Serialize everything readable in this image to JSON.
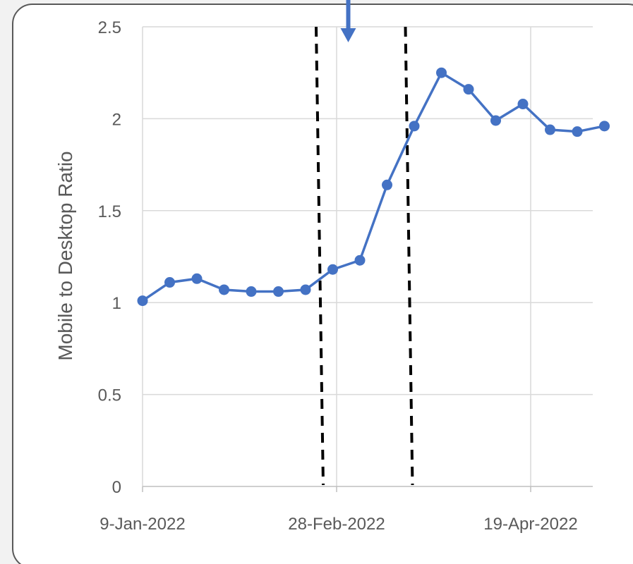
{
  "chart_data": {
    "type": "line",
    "title": "",
    "xlabel": "",
    "ylabel": "Mobile to Desktop Ratio",
    "ylim": [
      0,
      2.5
    ],
    "xlim": [
      "2022-01-09",
      "2022-05-05"
    ],
    "y_ticks": [
      "0",
      "0.5",
      "1",
      "1.5",
      "2",
      "2.5"
    ],
    "x_ticks": [
      {
        "date": "2022-01-09",
        "label": "9-Jan-2022"
      },
      {
        "date": "2022-02-28",
        "label": "28-Feb-2022"
      },
      {
        "date": "2022-04-19",
        "label": "19-Apr-2022"
      }
    ],
    "grid": true,
    "series": [
      {
        "color": "#4472c4",
        "points": [
          {
            "x": "2022-01-09",
            "y": 1.01
          },
          {
            "x": "2022-01-16",
            "y": 1.11
          },
          {
            "x": "2022-01-23",
            "y": 1.13
          },
          {
            "x": "2022-01-30",
            "y": 1.07
          },
          {
            "x": "2022-02-06",
            "y": 1.06
          },
          {
            "x": "2022-02-13",
            "y": 1.06
          },
          {
            "x": "2022-02-20",
            "y": 1.07
          },
          {
            "x": "2022-02-27",
            "y": 1.18
          },
          {
            "x": "2022-03-06",
            "y": 1.23
          },
          {
            "x": "2022-03-13",
            "y": 1.64
          },
          {
            "x": "2022-03-20",
            "y": 1.96
          },
          {
            "x": "2022-03-27",
            "y": 2.25
          },
          {
            "x": "2022-04-03",
            "y": 2.16
          },
          {
            "x": "2022-04-10",
            "y": 1.99
          },
          {
            "x": "2022-04-17",
            "y": 2.08
          },
          {
            "x": "2022-04-24",
            "y": 1.94
          },
          {
            "x": "2022-05-01",
            "y": 1.93
          },
          {
            "x": "2022-05-08",
            "y": 1.96
          }
        ]
      }
    ],
    "vertical_markers": [
      {
        "x": "2022-02-24",
        "style": "dashed",
        "color": "#000000"
      },
      {
        "x": "2022-03-19",
        "style": "dashed",
        "color": "#000000"
      }
    ],
    "annotation_arrow": {
      "x": "2022-03-03",
      "color": "#4472c4",
      "direction": "down"
    }
  }
}
